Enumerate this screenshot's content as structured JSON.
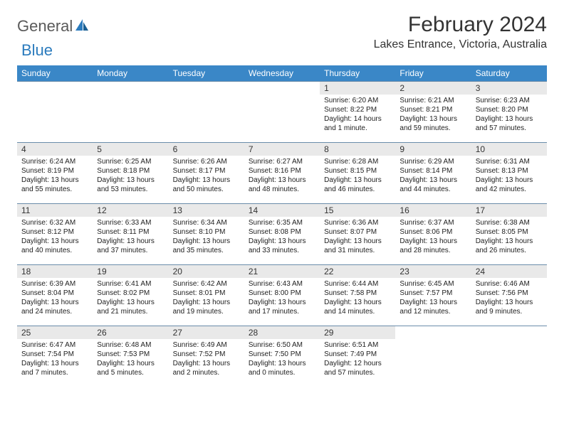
{
  "brand": {
    "part1": "General",
    "part2": "Blue"
  },
  "title": "February 2024",
  "location": "Lakes Entrance, Victoria, Australia",
  "colors": {
    "header_bg": "#3a87c7",
    "header_text": "#ffffff",
    "daynum_bg": "#e9e9e9",
    "row_border": "#6a8caa",
    "logo_blue": "#2b7bbd",
    "logo_gray": "#5a5a5a",
    "text": "#222222"
  },
  "weekdays": [
    "Sunday",
    "Monday",
    "Tuesday",
    "Wednesday",
    "Thursday",
    "Friday",
    "Saturday"
  ],
  "weeks": [
    [
      null,
      null,
      null,
      null,
      {
        "d": "1",
        "sr": "6:20 AM",
        "ss": "8:22 PM",
        "dl": "14 hours and 1 minute."
      },
      {
        "d": "2",
        "sr": "6:21 AM",
        "ss": "8:21 PM",
        "dl": "13 hours and 59 minutes."
      },
      {
        "d": "3",
        "sr": "6:23 AM",
        "ss": "8:20 PM",
        "dl": "13 hours and 57 minutes."
      }
    ],
    [
      {
        "d": "4",
        "sr": "6:24 AM",
        "ss": "8:19 PM",
        "dl": "13 hours and 55 minutes."
      },
      {
        "d": "5",
        "sr": "6:25 AM",
        "ss": "8:18 PM",
        "dl": "13 hours and 53 minutes."
      },
      {
        "d": "6",
        "sr": "6:26 AM",
        "ss": "8:17 PM",
        "dl": "13 hours and 50 minutes."
      },
      {
        "d": "7",
        "sr": "6:27 AM",
        "ss": "8:16 PM",
        "dl": "13 hours and 48 minutes."
      },
      {
        "d": "8",
        "sr": "6:28 AM",
        "ss": "8:15 PM",
        "dl": "13 hours and 46 minutes."
      },
      {
        "d": "9",
        "sr": "6:29 AM",
        "ss": "8:14 PM",
        "dl": "13 hours and 44 minutes."
      },
      {
        "d": "10",
        "sr": "6:31 AM",
        "ss": "8:13 PM",
        "dl": "13 hours and 42 minutes."
      }
    ],
    [
      {
        "d": "11",
        "sr": "6:32 AM",
        "ss": "8:12 PM",
        "dl": "13 hours and 40 minutes."
      },
      {
        "d": "12",
        "sr": "6:33 AM",
        "ss": "8:11 PM",
        "dl": "13 hours and 37 minutes."
      },
      {
        "d": "13",
        "sr": "6:34 AM",
        "ss": "8:10 PM",
        "dl": "13 hours and 35 minutes."
      },
      {
        "d": "14",
        "sr": "6:35 AM",
        "ss": "8:08 PM",
        "dl": "13 hours and 33 minutes."
      },
      {
        "d": "15",
        "sr": "6:36 AM",
        "ss": "8:07 PM",
        "dl": "13 hours and 31 minutes."
      },
      {
        "d": "16",
        "sr": "6:37 AM",
        "ss": "8:06 PM",
        "dl": "13 hours and 28 minutes."
      },
      {
        "d": "17",
        "sr": "6:38 AM",
        "ss": "8:05 PM",
        "dl": "13 hours and 26 minutes."
      }
    ],
    [
      {
        "d": "18",
        "sr": "6:39 AM",
        "ss": "8:04 PM",
        "dl": "13 hours and 24 minutes."
      },
      {
        "d": "19",
        "sr": "6:41 AM",
        "ss": "8:02 PM",
        "dl": "13 hours and 21 minutes."
      },
      {
        "d": "20",
        "sr": "6:42 AM",
        "ss": "8:01 PM",
        "dl": "13 hours and 19 minutes."
      },
      {
        "d": "21",
        "sr": "6:43 AM",
        "ss": "8:00 PM",
        "dl": "13 hours and 17 minutes."
      },
      {
        "d": "22",
        "sr": "6:44 AM",
        "ss": "7:58 PM",
        "dl": "13 hours and 14 minutes."
      },
      {
        "d": "23",
        "sr": "6:45 AM",
        "ss": "7:57 PM",
        "dl": "13 hours and 12 minutes."
      },
      {
        "d": "24",
        "sr": "6:46 AM",
        "ss": "7:56 PM",
        "dl": "13 hours and 9 minutes."
      }
    ],
    [
      {
        "d": "25",
        "sr": "6:47 AM",
        "ss": "7:54 PM",
        "dl": "13 hours and 7 minutes."
      },
      {
        "d": "26",
        "sr": "6:48 AM",
        "ss": "7:53 PM",
        "dl": "13 hours and 5 minutes."
      },
      {
        "d": "27",
        "sr": "6:49 AM",
        "ss": "7:52 PM",
        "dl": "13 hours and 2 minutes."
      },
      {
        "d": "28",
        "sr": "6:50 AM",
        "ss": "7:50 PM",
        "dl": "13 hours and 0 minutes."
      },
      {
        "d": "29",
        "sr": "6:51 AM",
        "ss": "7:49 PM",
        "dl": "12 hours and 57 minutes."
      },
      null,
      null
    ]
  ],
  "labels": {
    "sunrise": "Sunrise:",
    "sunset": "Sunset:",
    "daylight": "Daylight:"
  }
}
